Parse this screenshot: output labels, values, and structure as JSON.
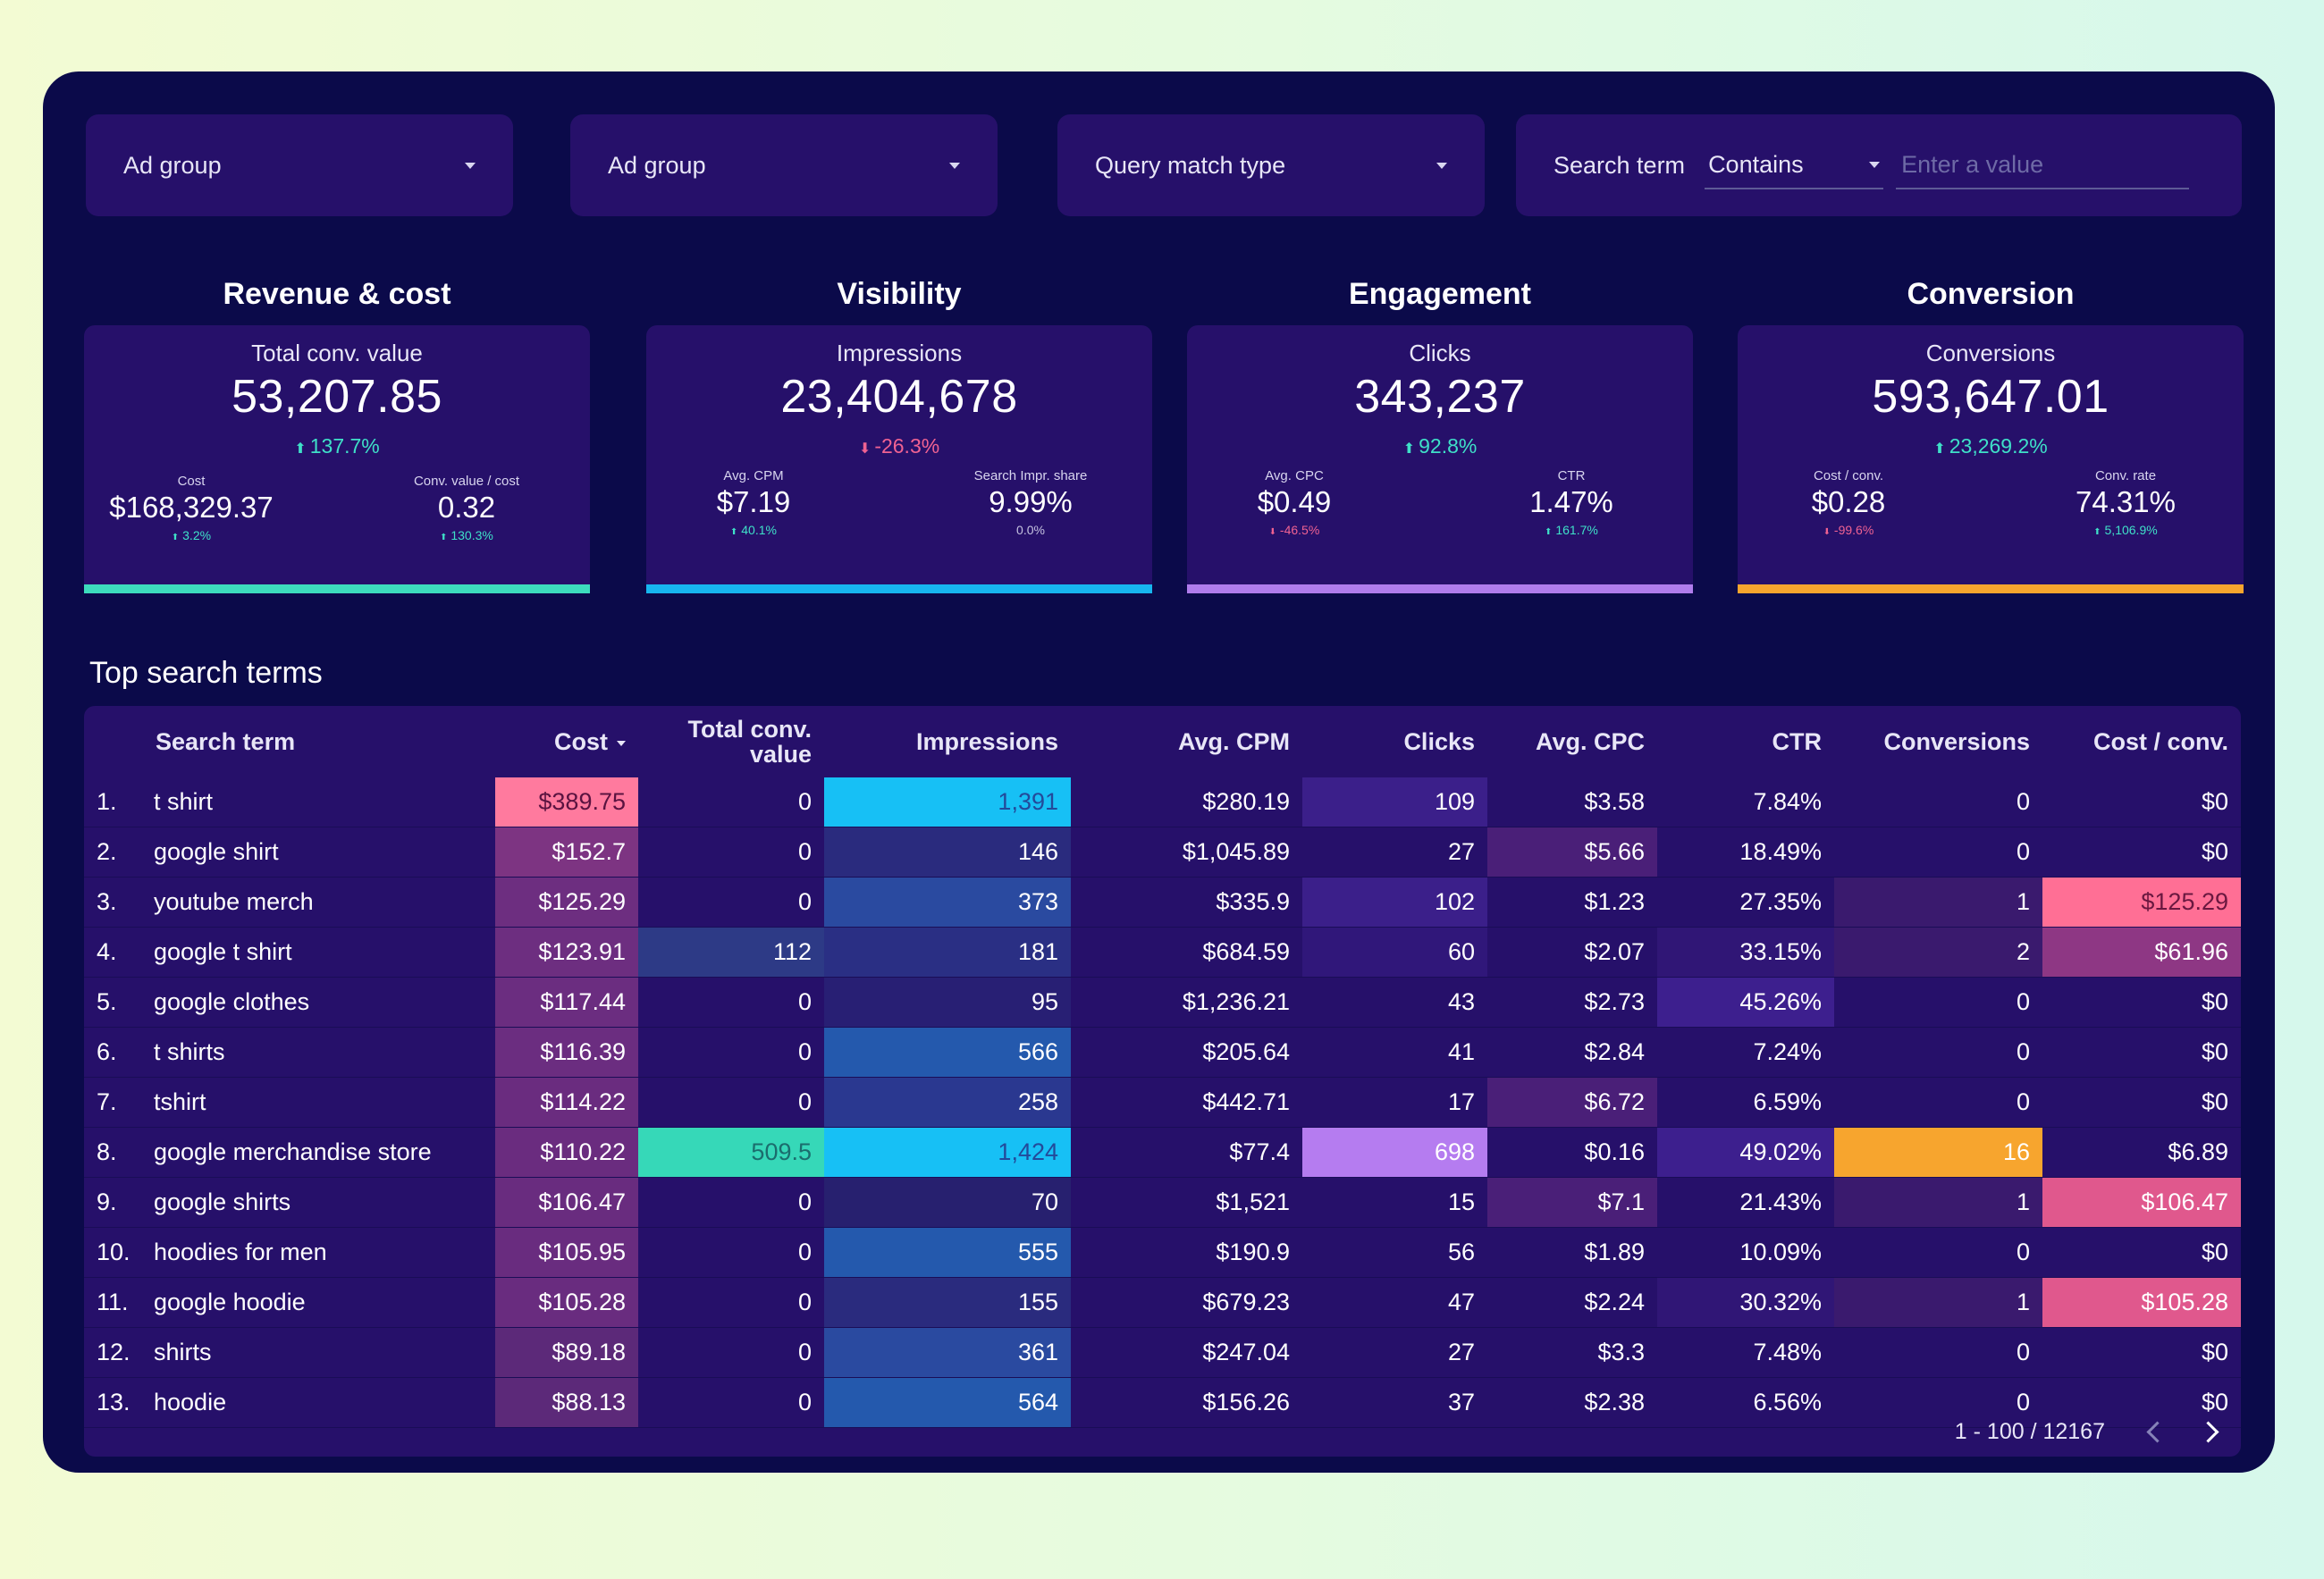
{
  "filters": [
    {
      "label": "Ad group"
    },
    {
      "label": "Ad group"
    },
    {
      "label": "Query match type"
    }
  ],
  "search_filter": {
    "label": "Search term",
    "operator": "Contains",
    "placeholder": "Enter a value"
  },
  "kpis": [
    {
      "section": "Revenue & cost",
      "metric": "Total conv. value",
      "value": "53,207.85",
      "delta": "137.7%",
      "delta_dir": "up",
      "bar_color": "#3ddcbd",
      "subs": [
        {
          "label": "Cost",
          "value": "$168,329.37",
          "delta": "3.2%",
          "dir": "up"
        },
        {
          "label": "Conv. value / cost",
          "value": "0.32",
          "delta": "130.3%",
          "dir": "up"
        }
      ]
    },
    {
      "section": "Visibility",
      "metric": "Impressions",
      "value": "23,404,678",
      "delta": "-26.3%",
      "delta_dir": "down",
      "bar_color": "#17b6ef",
      "subs": [
        {
          "label": "Avg. CPM",
          "value": "$7.19",
          "delta": "40.1%",
          "dir": "up"
        },
        {
          "label": "Search Impr. share",
          "value": "9.99%",
          "delta": "0.0%",
          "dir": "neutral"
        }
      ]
    },
    {
      "section": "Engagement",
      "metric": "Clicks",
      "value": "343,237",
      "delta": "92.8%",
      "delta_dir": "up",
      "bar_color": "#b07cec",
      "subs": [
        {
          "label": "Avg. CPC",
          "value": "$0.49",
          "delta": "-46.5%",
          "dir": "down"
        },
        {
          "label": "CTR",
          "value": "1.47%",
          "delta": "161.7%",
          "dir": "up"
        }
      ]
    },
    {
      "section": "Conversion",
      "metric": "Conversions",
      "value": "593,647.01",
      "delta": "23,269.2%",
      "delta_dir": "up",
      "bar_color": "#f7a52e",
      "subs": [
        {
          "label": "Cost / conv.",
          "value": "$0.28",
          "delta": "-99.6%",
          "dir": "down"
        },
        {
          "label": "Conv. rate",
          "value": "74.31%",
          "delta": "5,106.9%",
          "dir": "up"
        }
      ]
    }
  ],
  "table": {
    "title": "Top search terms",
    "columns": [
      "Search term",
      "Cost",
      "Total conv. value",
      "Impressions",
      "Avg. CPM",
      "Clicks",
      "Avg. CPC",
      "CTR",
      "Conversions",
      "Cost / conv."
    ],
    "rows": [
      {
        "idx": "1.",
        "term": "t shirt",
        "cost": "$389.75",
        "tcv": "0",
        "impr": "1,391",
        "cpm": "$280.19",
        "clicks": "109",
        "cpc": "$3.58",
        "ctr": "7.84%",
        "conv": "0",
        "cpconv": "$0"
      },
      {
        "idx": "2.",
        "term": "google shirt",
        "cost": "$152.7",
        "tcv": "0",
        "impr": "146",
        "cpm": "$1,045.89",
        "clicks": "27",
        "cpc": "$5.66",
        "ctr": "18.49%",
        "conv": "0",
        "cpconv": "$0"
      },
      {
        "idx": "3.",
        "term": "youtube merch",
        "cost": "$125.29",
        "tcv": "0",
        "impr": "373",
        "cpm": "$335.9",
        "clicks": "102",
        "cpc": "$1.23",
        "ctr": "27.35%",
        "conv": "1",
        "cpconv": "$125.29"
      },
      {
        "idx": "4.",
        "term": "google t shirt",
        "cost": "$123.91",
        "tcv": "112",
        "impr": "181",
        "cpm": "$684.59",
        "clicks": "60",
        "cpc": "$2.07",
        "ctr": "33.15%",
        "conv": "2",
        "cpconv": "$61.96"
      },
      {
        "idx": "5.",
        "term": "google clothes",
        "cost": "$117.44",
        "tcv": "0",
        "impr": "95",
        "cpm": "$1,236.21",
        "clicks": "43",
        "cpc": "$2.73",
        "ctr": "45.26%",
        "conv": "0",
        "cpconv": "$0"
      },
      {
        "idx": "6.",
        "term": "t shirts",
        "cost": "$116.39",
        "tcv": "0",
        "impr": "566",
        "cpm": "$205.64",
        "clicks": "41",
        "cpc": "$2.84",
        "ctr": "7.24%",
        "conv": "0",
        "cpconv": "$0"
      },
      {
        "idx": "7.",
        "term": "tshirt",
        "cost": "$114.22",
        "tcv": "0",
        "impr": "258",
        "cpm": "$442.71",
        "clicks": "17",
        "cpc": "$6.72",
        "ctr": "6.59%",
        "conv": "0",
        "cpconv": "$0"
      },
      {
        "idx": "8.",
        "term": "google merchandise store",
        "cost": "$110.22",
        "tcv": "509.5",
        "impr": "1,424",
        "cpm": "$77.4",
        "clicks": "698",
        "cpc": "$0.16",
        "ctr": "49.02%",
        "conv": "16",
        "cpconv": "$6.89"
      },
      {
        "idx": "9.",
        "term": "google shirts",
        "cost": "$106.47",
        "tcv": "0",
        "impr": "70",
        "cpm": "$1,521",
        "clicks": "15",
        "cpc": "$7.1",
        "ctr": "21.43%",
        "conv": "1",
        "cpconv": "$106.47"
      },
      {
        "idx": "10.",
        "term": "hoodies for men",
        "cost": "$105.95",
        "tcv": "0",
        "impr": "555",
        "cpm": "$190.9",
        "clicks": "56",
        "cpc": "$1.89",
        "ctr": "10.09%",
        "conv": "0",
        "cpconv": "$0"
      },
      {
        "idx": "11.",
        "term": "google hoodie",
        "cost": "$105.28",
        "tcv": "0",
        "impr": "155",
        "cpm": "$679.23",
        "clicks": "47",
        "cpc": "$2.24",
        "ctr": "30.32%",
        "conv": "1",
        "cpconv": "$105.28"
      },
      {
        "idx": "12.",
        "term": "shirts",
        "cost": "$89.18",
        "tcv": "0",
        "impr": "361",
        "cpm": "$247.04",
        "clicks": "27",
        "cpc": "$3.3",
        "ctr": "7.48%",
        "conv": "0",
        "cpconv": "$0"
      },
      {
        "idx": "13.",
        "term": "hoodie",
        "cost": "$88.13",
        "tcv": "0",
        "impr": "564",
        "cpm": "$156.26",
        "clicks": "37",
        "cpc": "$2.38",
        "ctr": "6.56%",
        "conv": "0",
        "cpconv": "$0"
      }
    ],
    "cell_colors": {
      "cost": [
        "#ff7a9e",
        "#7d3482",
        "#6d2e80",
        "#6d2e80",
        "#6b2d80",
        "#6b2d80",
        "#6a2c7f",
        "#6a2c7f",
        "#692c7f",
        "#692c7f",
        "#692c7f",
        "#5c2979",
        "#5c2979"
      ],
      "tcv": [
        "",
        "",
        "",
        "#2d3a86",
        "",
        "",
        "",
        "#36d8b8",
        "",
        "",
        "",
        "",
        ""
      ],
      "impr": [
        "#17c0f5",
        "#2a2b7e",
        "#2a4aa0",
        "#2a2f84",
        "#281f74",
        "#2459ad",
        "#2a3890",
        "#17c0f5",
        "#27206f",
        "#2459ad",
        "#2a2b7e",
        "#2a4aa0",
        "#2459ad"
      ],
      "clicks": [
        "#3b1f8a",
        "",
        "#3b1f8a",
        "#30177a",
        "",
        "",
        "",
        "#b57cf0",
        "",
        "",
        "",
        "",
        ""
      ],
      "cpc": [
        "",
        "#4a1f78",
        "",
        "",
        "",
        "",
        "#4a1f78",
        "",
        "#4a1f78",
        "",
        "",
        "",
        ""
      ],
      "ctr": [
        "",
        "",
        "",
        "#301676",
        "#3d1f8e",
        "",
        "",
        "#3d1f8e",
        "",
        "",
        "#301676",
        "",
        ""
      ],
      "conv": [
        "",
        "",
        "#3a1a6e",
        "#3a1a6e",
        "",
        "",
        "",
        "#f7a52e",
        "#3a1a6e",
        "",
        "#3a1a6e",
        "",
        ""
      ],
      "cpconv": [
        "",
        "",
        "#ff6f95",
        "#8e3784",
        "",
        "",
        "",
        "",
        "#e0588d",
        "",
        "#e0588d",
        "",
        ""
      ]
    },
    "pager": "1 - 100 / 12167"
  }
}
